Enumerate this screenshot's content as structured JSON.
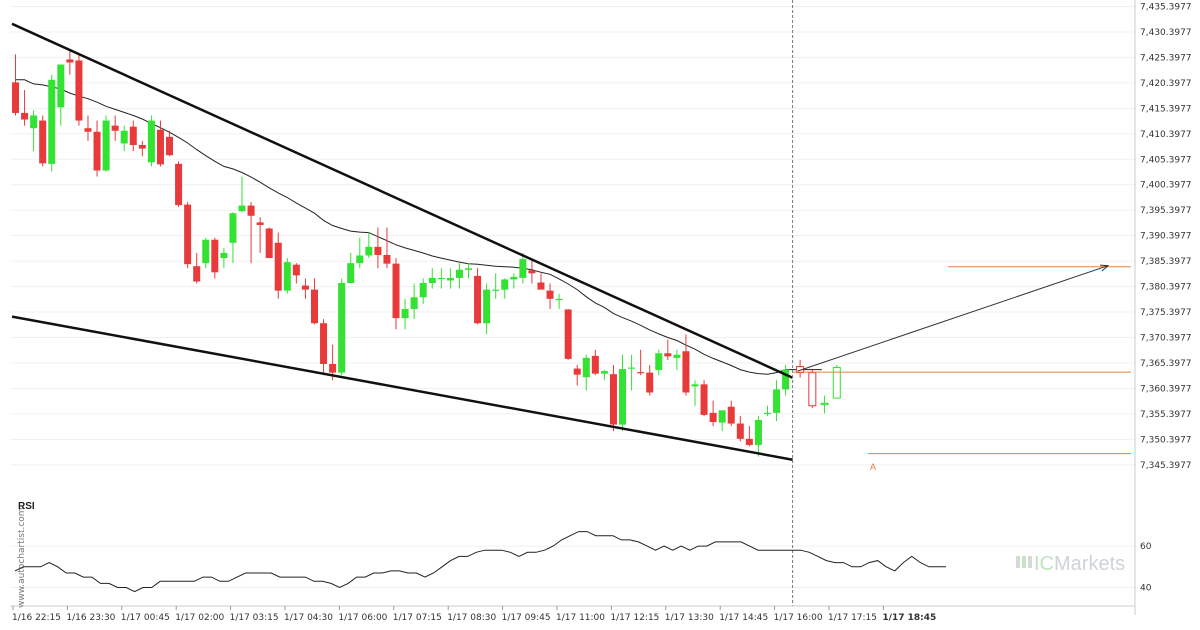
{
  "watermark": {
    "vendor": "www.autochartist.com",
    "brand": "ICMarkets",
    "brand_ic": "IC",
    "brand_rest": "Markets"
  },
  "colors": {
    "bull": "#33e233",
    "bear": "#e83a3a",
    "ma": "#222222",
    "level": "#e8823a",
    "trend": "#111111",
    "arrow": "#333333",
    "grid": "#dddddd"
  },
  "chart_data": {
    "type": "candlestick",
    "ylim": [
      7343.3977,
      7435.3977
    ],
    "y_ticks": [
      "7,435.3977",
      "7,430.3977",
      "7,425.3977",
      "7,420.3977",
      "7,415.3977",
      "7,410.3977",
      "7,405.3977",
      "7,400.3977",
      "7,395.3977",
      "7,390.3977",
      "7,385.3977",
      "7,380.3977",
      "7,375.3977",
      "7,370.3977",
      "7,365.3977",
      "7,360.3977",
      "7,355.3977",
      "7,350.3977",
      "7,345.3977"
    ],
    "x_ticks": [
      "1/16 22:15",
      "1/16 23:30",
      "1/17 00:45",
      "1/17 02:00",
      "1/17 03:15",
      "1/17 04:30",
      "1/17 06:00",
      "1/17 07:15",
      "1/17 08:30",
      "1/17 09:45",
      "1/17 11:00",
      "1/17 12:15",
      "1/17 13:30",
      "1/17 14:45",
      "1/17 16:00",
      "1/17 17:15",
      "1/17 18:45"
    ],
    "candles": [
      {
        "o": 7420.5,
        "h": 7426,
        "l": 7414,
        "c": 7414.5
      },
      {
        "o": 7414.5,
        "h": 7419,
        "l": 7412,
        "c": 7413.2
      },
      {
        "o": 7411.5,
        "h": 7415,
        "l": 7407,
        "c": 7414
      },
      {
        "o": 7413,
        "h": 7414,
        "l": 7404,
        "c": 7404.6
      },
      {
        "o": 7404.5,
        "h": 7422,
        "l": 7403,
        "c": 7421
      },
      {
        "o": 7415.6,
        "h": 7424,
        "l": 7412,
        "c": 7424
      },
      {
        "o": 7425,
        "h": 7427,
        "l": 7422,
        "c": 7424.4
      },
      {
        "o": 7424.8,
        "h": 7426,
        "l": 7412,
        "c": 7413
      },
      {
        "o": 7411.5,
        "h": 7414,
        "l": 7409,
        "c": 7410.8
      },
      {
        "o": 7410.8,
        "h": 7413,
        "l": 7402,
        "c": 7403.2
      },
      {
        "o": 7403.2,
        "h": 7414,
        "l": 7403,
        "c": 7413
      },
      {
        "o": 7412,
        "h": 7414,
        "l": 7409,
        "c": 7411
      },
      {
        "o": 7408.5,
        "h": 7412,
        "l": 7407,
        "c": 7411
      },
      {
        "o": 7411.8,
        "h": 7413,
        "l": 7407,
        "c": 7408.2
      },
      {
        "o": 7408.2,
        "h": 7409,
        "l": 7406,
        "c": 7407.5
      },
      {
        "o": 7404.8,
        "h": 7414,
        "l": 7404,
        "c": 7413
      },
      {
        "o": 7411.2,
        "h": 7413,
        "l": 7404,
        "c": 7404.4
      },
      {
        "o": 7409.8,
        "h": 7411,
        "l": 7406,
        "c": 7406.2
      },
      {
        "o": 7404.5,
        "h": 7405,
        "l": 7396,
        "c": 7396.4
      },
      {
        "o": 7396.5,
        "h": 7397,
        "l": 7384,
        "c": 7384.8
      },
      {
        "o": 7384.4,
        "h": 7387,
        "l": 7381,
        "c": 7381.4
      },
      {
        "o": 7385,
        "h": 7390,
        "l": 7384,
        "c": 7389.6
      },
      {
        "o": 7389.6,
        "h": 7390,
        "l": 7382,
        "c": 7383.2
      },
      {
        "o": 7386,
        "h": 7388,
        "l": 7384,
        "c": 7387
      },
      {
        "o": 7389,
        "h": 7395,
        "l": 7385,
        "c": 7394.8
      },
      {
        "o": 7395.2,
        "h": 7402,
        "l": 7395,
        "c": 7396.3
      },
      {
        "o": 7396.3,
        "h": 7397,
        "l": 7385,
        "c": 7394.3
      },
      {
        "o": 7393,
        "h": 7394,
        "l": 7387,
        "c": 7392.5
      },
      {
        "o": 7391.8,
        "h": 7392,
        "l": 7386,
        "c": 7386
      },
      {
        "o": 7389,
        "h": 7391,
        "l": 7378,
        "c": 7379.6
      },
      {
        "o": 7379.6,
        "h": 7386,
        "l": 7379,
        "c": 7385.2
      },
      {
        "o": 7384.7,
        "h": 7385,
        "l": 7381,
        "c": 7382.6
      },
      {
        "o": 7380.6,
        "h": 7382,
        "l": 7378,
        "c": 7379.8
      },
      {
        "o": 7379.8,
        "h": 7382,
        "l": 7373,
        "c": 7373.2
      },
      {
        "o": 7373.2,
        "h": 7374,
        "l": 7363,
        "c": 7365.2
      },
      {
        "o": 7365.2,
        "h": 7369,
        "l": 7362,
        "c": 7363.5
      },
      {
        "o": 7363.5,
        "h": 7382,
        "l": 7363,
        "c": 7381.1
      },
      {
        "o": 7381.1,
        "h": 7387,
        "l": 7381,
        "c": 7385
      },
      {
        "o": 7385,
        "h": 7390,
        "l": 7384,
        "c": 7386.5
      },
      {
        "o": 7386.5,
        "h": 7391,
        "l": 7386,
        "c": 7388.2
      },
      {
        "o": 7388.2,
        "h": 7392,
        "l": 7384,
        "c": 7386.6
      },
      {
        "o": 7386.6,
        "h": 7392,
        "l": 7384,
        "c": 7384.9
      },
      {
        "o": 7384.9,
        "h": 7386,
        "l": 7372,
        "c": 7374.2
      },
      {
        "o": 7374.2,
        "h": 7378,
        "l": 7372,
        "c": 7376
      },
      {
        "o": 7376,
        "h": 7381,
        "l": 7374,
        "c": 7378.3
      },
      {
        "o": 7378.3,
        "h": 7382,
        "l": 7377,
        "c": 7381.1
      },
      {
        "o": 7381.1,
        "h": 7384,
        "l": 7380,
        "c": 7382.1
      },
      {
        "o": 7382.1,
        "h": 7384,
        "l": 7380,
        "c": 7382.1
      },
      {
        "o": 7381.6,
        "h": 7384,
        "l": 7380,
        "c": 7382.1
      },
      {
        "o": 7382.1,
        "h": 7385,
        "l": 7380,
        "c": 7383.7
      },
      {
        "o": 7383.7,
        "h": 7385,
        "l": 7382,
        "c": 7384
      },
      {
        "o": 7382.5,
        "h": 7384,
        "l": 7373,
        "c": 7373.2
      },
      {
        "o": 7373.2,
        "h": 7381,
        "l": 7371,
        "c": 7379.8
      },
      {
        "o": 7379.8,
        "h": 7383,
        "l": 7378,
        "c": 7379.8
      },
      {
        "o": 7379.8,
        "h": 7382,
        "l": 7378,
        "c": 7381.8
      },
      {
        "o": 7381.8,
        "h": 7383,
        "l": 7380,
        "c": 7382.3
      },
      {
        "o": 7382.1,
        "h": 7387,
        "l": 7381,
        "c": 7385.8
      },
      {
        "o": 7383.6,
        "h": 7386,
        "l": 7381,
        "c": 7383
      },
      {
        "o": 7381.2,
        "h": 7383,
        "l": 7380,
        "c": 7379.8
      },
      {
        "o": 7379.6,
        "h": 7381,
        "l": 7376,
        "c": 7378
      },
      {
        "o": 7378,
        "h": 7379,
        "l": 7376,
        "c": 7378
      },
      {
        "o": 7375.9,
        "h": 7376,
        "l": 7366,
        "c": 7366.2
      },
      {
        "o": 7364.3,
        "h": 7365,
        "l": 7361,
        "c": 7363.1
      },
      {
        "o": 7362.6,
        "h": 7367,
        "l": 7360,
        "c": 7366.4
      },
      {
        "o": 7366.8,
        "h": 7368,
        "l": 7363,
        "c": 7363.3
      },
      {
        "o": 7363.3,
        "h": 7364,
        "l": 7362,
        "c": 7363.8
      },
      {
        "o": 7363.2,
        "h": 7365,
        "l": 7352,
        "c": 7353.3
      },
      {
        "o": 7353.3,
        "h": 7367,
        "l": 7352,
        "c": 7364.2
      },
      {
        "o": 7364.5,
        "h": 7367,
        "l": 7360,
        "c": 7364.5
      },
      {
        "o": 7363.6,
        "h": 7368,
        "l": 7363,
        "c": 7363.5
      },
      {
        "o": 7363.5,
        "h": 7365,
        "l": 7359,
        "c": 7359.6
      },
      {
        "o": 7364,
        "h": 7368,
        "l": 7363,
        "c": 7367.3
      },
      {
        "o": 7367.3,
        "h": 7370,
        "l": 7366,
        "c": 7366.7
      },
      {
        "o": 7366.4,
        "h": 7368,
        "l": 7364,
        "c": 7367
      },
      {
        "o": 7367.7,
        "h": 7371,
        "l": 7359,
        "c": 7359.6
      },
      {
        "o": 7360.8,
        "h": 7362,
        "l": 7357,
        "c": 7361.2
      },
      {
        "o": 7361.2,
        "h": 7362,
        "l": 7355,
        "c": 7355.2
      },
      {
        "o": 7355.6,
        "h": 7358,
        "l": 7353,
        "c": 7353.8
      },
      {
        "o": 7353.7,
        "h": 7356,
        "l": 7352,
        "c": 7356.1
      },
      {
        "o": 7356.8,
        "h": 7358,
        "l": 7353,
        "c": 7353.5
      },
      {
        "o": 7353.5,
        "h": 7355,
        "l": 7350,
        "c": 7350.5
      },
      {
        "o": 7350.5,
        "h": 7353,
        "l": 7349,
        "c": 7349.3
      },
      {
        "o": 7349.3,
        "h": 7355,
        "l": 7347,
        "c": 7354.2
      },
      {
        "o": 7355.6,
        "h": 7357,
        "l": 7355,
        "c": 7355.6
      },
      {
        "o": 7355.6,
        "h": 7362,
        "l": 7354,
        "c": 7360.2
      },
      {
        "o": 7360.2,
        "h": 7365,
        "l": 7359,
        "c": 7364.1
      }
    ],
    "projection_candles": [
      {
        "o": 7364.7,
        "h": 7366,
        "l": 7362.5,
        "c": 7363.5
      },
      {
        "o": 7363.5,
        "h": 7364,
        "l": 7356.5,
        "c": 7357
      },
      {
        "o": 7357.5,
        "h": 7359,
        "l": 7355.5,
        "c": 7357.5
      },
      {
        "o": 7358.5,
        "h": 7365,
        "l": 7358.5,
        "c": 7364.5
      }
    ],
    "moving_average": [
      7421,
      7421,
      7420.2,
      7420,
      7419.6,
      7419.2,
      7418.4,
      7417.8,
      7417.3,
      7416.6,
      7415.8,
      7415.2,
      7414.6,
      7414,
      7413.3,
      7412.4,
      7411.6,
      7410.7,
      7409.7,
      7408.6,
      7407.3,
      7406.1,
      7405,
      7404,
      7403.5,
      7402.8,
      7401.9,
      7400.9,
      7399.8,
      7398.8,
      7397.9,
      7396.8,
      7395.8,
      7394.8,
      7393.4,
      7392.4,
      7391.8,
      7391.3,
      7391.1,
      7391,
      7390.2,
      7389.4,
      7388.6,
      7388,
      7387.5,
      7387,
      7386.4,
      7386,
      7385.6,
      7385.2,
      7384.9,
      7384.8,
      7384.6,
      7384.4,
      7384.3,
      7384.2,
      7384,
      7383.7,
      7383.2,
      7382.8,
      7381.9,
      7380.9,
      7379.8,
      7378.4,
      7377.2,
      7376.3,
      7375.1,
      7374.3,
      7373.6,
      7372.8,
      7371.9,
      7371.1,
      7370.4,
      7369.8,
      7368.9,
      7368.1,
      7367.1,
      7366.3,
      7365.6,
      7364.9,
      7364.1,
      7363.6,
      7363.3,
      7363.2,
      7363.5,
      7364.1,
      7364.1,
      7364.1,
      7364.1,
      7364.1
    ],
    "upper_trendline": [
      [
        7432,
        7362.5
      ]
    ],
    "lower_trendline": [
      [
        7374.5,
        7346.4
      ]
    ],
    "levels": [
      7384.3,
      7363.6,
      7347.6
    ],
    "forecast_target": 7384.5,
    "pattern_point_label": "A",
    "rsi": {
      "label": "RSI",
      "y_ticks": [
        "60",
        "40"
      ],
      "ylim": [
        33,
        75
      ],
      "values": [
        48,
        50,
        50,
        50,
        52,
        50,
        47,
        47,
        45,
        45,
        42,
        42,
        40,
        40,
        38,
        40,
        40,
        43,
        43,
        43,
        43,
        43,
        45,
        45,
        43,
        43,
        45,
        47,
        47,
        47,
        47,
        45,
        45,
        45,
        45,
        43,
        43,
        42,
        40,
        42,
        45,
        45,
        47,
        47,
        48,
        48,
        47,
        47,
        45,
        47,
        50,
        53,
        55,
        55,
        57,
        58,
        58,
        58,
        57,
        55,
        57,
        57,
        58,
        60,
        63,
        65,
        67,
        67,
        65,
        65,
        65,
        63,
        63,
        62,
        60,
        58,
        60,
        58,
        60,
        58,
        60,
        60,
        62,
        62,
        62,
        62,
        60,
        58,
        58,
        58,
        58,
        58,
        58,
        57,
        55,
        53,
        52,
        52,
        50,
        50,
        52,
        53,
        50,
        48,
        52,
        55,
        52,
        50,
        50,
        50
      ]
    }
  }
}
